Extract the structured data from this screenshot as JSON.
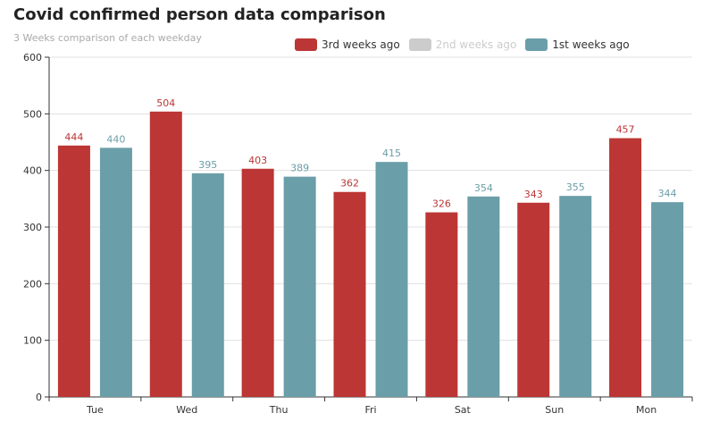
{
  "chart_data": {
    "type": "bar",
    "title": "Covid confirmed person data comparison",
    "subtitle": "3 Weeks comparison of each weekday",
    "categories": [
      "Tue",
      "Wed",
      "Thu",
      "Fri",
      "Sat",
      "Sun",
      "Mon"
    ],
    "ylim": [
      0,
      600
    ],
    "yticks": [
      0,
      100,
      200,
      300,
      400,
      500,
      600
    ],
    "legend_position": "top",
    "grid": true,
    "legend": [
      {
        "name": "3rd weeks ago",
        "color": "#bb3634",
        "enabled": true
      },
      {
        "name": "2nd weeks ago",
        "color": "#cccccc",
        "enabled": false
      },
      {
        "name": "1st weeks ago",
        "color": "#6a9ea8",
        "enabled": true
      }
    ],
    "series": [
      {
        "name": "3rd weeks ago",
        "color": "#bb3634",
        "values": [
          444,
          504,
          403,
          362,
          326,
          343,
          457
        ]
      },
      {
        "name": "1st weeks ago",
        "color": "#6a9ea8",
        "values": [
          440,
          395,
          389,
          415,
          354,
          355,
          344
        ]
      }
    ]
  }
}
